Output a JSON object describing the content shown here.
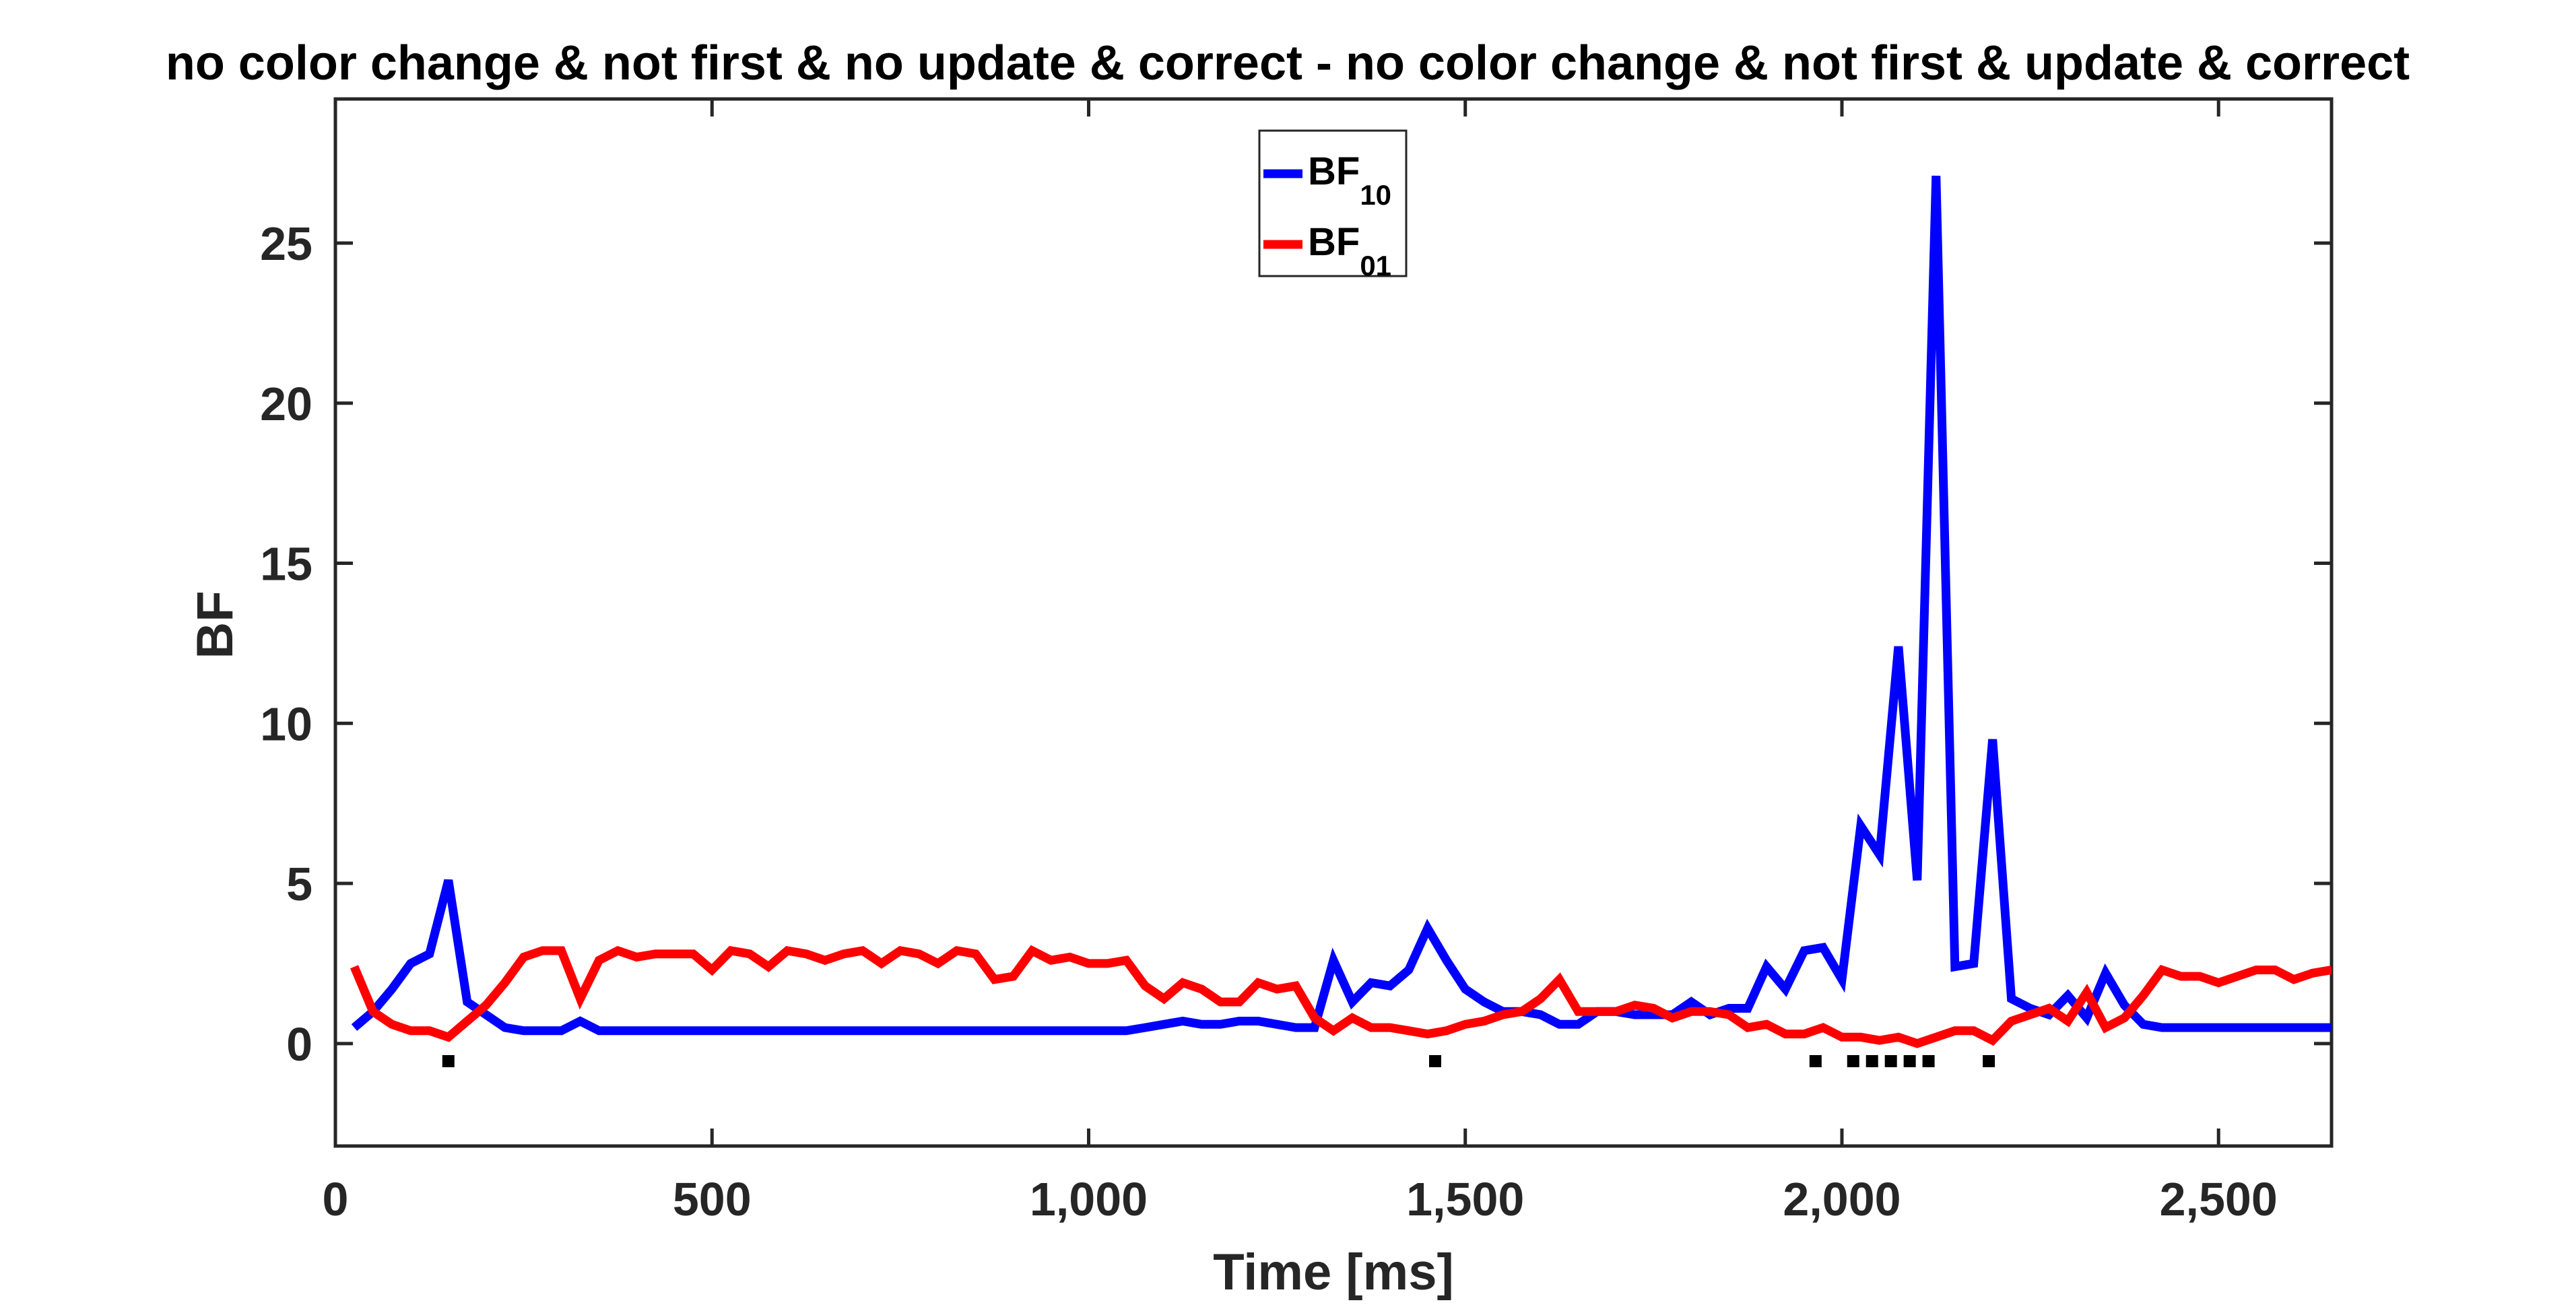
{
  "chart_data": {
    "type": "line",
    "title": "no color change & not first & no update & correct - no color change & not first & update & correct",
    "xlabel": "Time [ms]",
    "ylabel": "BF",
    "xlim": [
      0,
      2650
    ],
    "ylim": [
      -3.2,
      29.5
    ],
    "x_ticks": [
      0,
      500,
      1000,
      1500,
      2000,
      2500
    ],
    "x_tick_labels": [
      "0",
      "500",
      "1,000",
      "1,500",
      "2,000",
      "2,500"
    ],
    "y_ticks": [
      0,
      5,
      10,
      15,
      20,
      25
    ],
    "y_tick_labels": [
      "0",
      "5",
      "10",
      "15",
      "20",
      "25"
    ],
    "grid": false,
    "legend_position": "top-center",
    "legend": [
      {
        "base": "BF",
        "sub": "10",
        "color": "#0000FF"
      },
      {
        "base": "BF",
        "sub": "01",
        "color": "#FF0000"
      }
    ],
    "series": [
      {
        "color": "#0000FF",
        "x": [
          25,
          50,
          75,
          100,
          125,
          150,
          175,
          200,
          225,
          250,
          275,
          300,
          325,
          350,
          375,
          400,
          425,
          450,
          475,
          500,
          525,
          550,
          575,
          600,
          625,
          650,
          675,
          700,
          725,
          750,
          775,
          800,
          825,
          850,
          875,
          900,
          925,
          950,
          975,
          1000,
          1025,
          1050,
          1075,
          1100,
          1125,
          1150,
          1175,
          1200,
          1225,
          1250,
          1275,
          1300,
          1325,
          1350,
          1375,
          1400,
          1425,
          1450,
          1475,
          1500,
          1525,
          1550,
          1575,
          1600,
          1625,
          1650,
          1675,
          1700,
          1725,
          1750,
          1775,
          1800,
          1825,
          1850,
          1875,
          1900,
          1925,
          1950,
          1975,
          2000,
          2025,
          2050,
          2075,
          2100,
          2125,
          2150,
          2175,
          2200,
          2225,
          2250,
          2275,
          2300,
          2325,
          2350,
          2375,
          2400,
          2425,
          2450,
          2475,
          2500,
          2525,
          2550,
          2575,
          2600,
          2625,
          2650
        ],
        "values": [
          0.5,
          1.0,
          1.7,
          2.5,
          2.8,
          5.1,
          1.3,
          0.9,
          0.5,
          0.4,
          0.4,
          0.4,
          0.7,
          0.4,
          0.4,
          0.4,
          0.4,
          0.4,
          0.4,
          0.4,
          0.4,
          0.4,
          0.4,
          0.4,
          0.4,
          0.4,
          0.4,
          0.4,
          0.4,
          0.4,
          0.4,
          0.4,
          0.4,
          0.4,
          0.4,
          0.4,
          0.4,
          0.4,
          0.4,
          0.4,
          0.4,
          0.4,
          0.5,
          0.6,
          0.7,
          0.6,
          0.6,
          0.7,
          0.7,
          0.6,
          0.5,
          0.5,
          2.6,
          1.3,
          1.9,
          1.8,
          2.3,
          3.6,
          2.6,
          1.7,
          1.3,
          1.0,
          1.0,
          0.9,
          0.6,
          0.6,
          1.0,
          1.0,
          0.9,
          0.9,
          0.9,
          1.3,
          0.9,
          1.1,
          1.1,
          2.4,
          1.7,
          2.9,
          3.0,
          2.0,
          6.8,
          5.9,
          12.4,
          5.1,
          27.1,
          2.4,
          2.5,
          9.5,
          1.4,
          1.1,
          0.9,
          1.5,
          0.8,
          2.2,
          1.2,
          0.6,
          0.5,
          0.5,
          0.5,
          0.5,
          0.5,
          0.5,
          0.5,
          0.5,
          0.5,
          0.5
        ]
      },
      {
        "color": "#FF0000",
        "x": [
          25,
          50,
          75,
          100,
          125,
          150,
          175,
          200,
          225,
          250,
          275,
          300,
          325,
          350,
          375,
          400,
          425,
          450,
          475,
          500,
          525,
          550,
          575,
          600,
          625,
          650,
          675,
          700,
          725,
          750,
          775,
          800,
          825,
          850,
          875,
          900,
          925,
          950,
          975,
          1000,
          1025,
          1050,
          1075,
          1100,
          1125,
          1150,
          1175,
          1200,
          1225,
          1250,
          1275,
          1300,
          1325,
          1350,
          1375,
          1400,
          1425,
          1450,
          1475,
          1500,
          1525,
          1550,
          1575,
          1600,
          1625,
          1650,
          1675,
          1700,
          1725,
          1750,
          1775,
          1800,
          1825,
          1850,
          1875,
          1900,
          1925,
          1950,
          1975,
          2000,
          2025,
          2050,
          2075,
          2100,
          2125,
          2150,
          2175,
          2200,
          2225,
          2250,
          2275,
          2300,
          2325,
          2350,
          2375,
          2400,
          2425,
          2450,
          2475,
          2500,
          2525,
          2550,
          2575,
          2600,
          2625,
          2650
        ],
        "values": [
          2.4,
          1.0,
          0.6,
          0.4,
          0.4,
          0.2,
          0.7,
          1.2,
          1.9,
          2.7,
          2.9,
          2.9,
          1.4,
          2.6,
          2.9,
          2.7,
          2.8,
          2.8,
          2.8,
          2.3,
          2.9,
          2.8,
          2.4,
          2.9,
          2.8,
          2.6,
          2.8,
          2.9,
          2.5,
          2.9,
          2.8,
          2.5,
          2.9,
          2.8,
          2.0,
          2.1,
          2.9,
          2.6,
          2.7,
          2.5,
          2.5,
          2.6,
          1.8,
          1.4,
          1.9,
          1.7,
          1.3,
          1.3,
          1.9,
          1.7,
          1.8,
          0.8,
          0.4,
          0.8,
          0.5,
          0.5,
          0.4,
          0.3,
          0.4,
          0.6,
          0.7,
          0.9,
          1.0,
          1.4,
          2.0,
          1.0,
          1.0,
          1.0,
          1.2,
          1.1,
          0.8,
          1.0,
          1.0,
          0.9,
          0.5,
          0.6,
          0.3,
          0.3,
          0.5,
          0.2,
          0.2,
          0.1,
          0.2,
          0.0,
          0.2,
          0.4,
          0.4,
          0.1,
          0.7,
          0.9,
          1.1,
          0.7,
          1.6,
          0.5,
          0.8,
          1.5,
          2.3,
          2.1,
          2.1,
          1.9,
          2.1,
          2.3,
          2.3,
          2.0,
          2.2,
          2.3
        ]
      }
    ],
    "markers": {
      "color": "#000000",
      "y": -0.55,
      "x": [
        150,
        1460,
        1965,
        2015,
        2040,
        2065,
        2090,
        2115,
        2195
      ]
    }
  }
}
